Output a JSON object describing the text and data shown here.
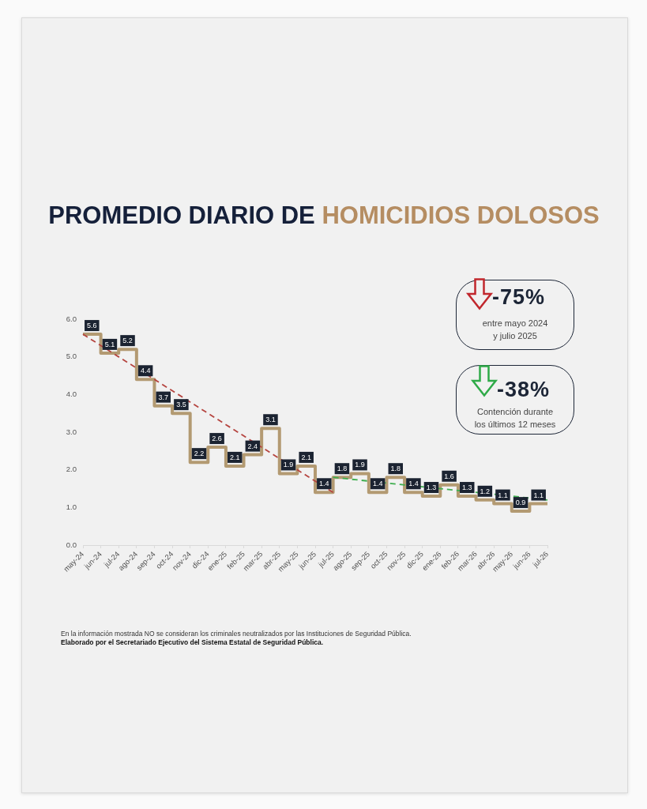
{
  "chart_data": {
    "type": "step",
    "title": "PROMEDIO DIARIO DE HOMICIDIOS DOLOSOS",
    "categories": [
      "may-24",
      "jun-24",
      "jul-24",
      "ago-24",
      "sep-24",
      "oct-24",
      "nov-24",
      "dic-24",
      "ene-25",
      "feb-25",
      "mar-25",
      "abr-25",
      "may-25",
      "jun-25",
      "jul-25",
      "ago-25",
      "sep-25",
      "oct-25",
      "nov-25",
      "dic-25",
      "ene-26",
      "feb-26",
      "mar-26",
      "abr-26",
      "may-26",
      "jun-26",
      "jul-26"
    ],
    "series": [
      {
        "color": "#b39a72",
        "values": [
          5.6,
          5.1,
          5.2,
          4.4,
          3.7,
          3.5,
          2.2,
          2.6,
          2.1,
          2.4,
          3.1,
          1.9,
          2.1,
          1.4,
          1.8,
          1.9,
          1.4,
          1.8,
          1.4,
          1.3,
          1.6,
          1.3,
          1.2,
          1.1,
          0.9,
          1.1,
          1.1
        ],
        "value_labels": [
          "5.6",
          "5.1",
          "5.2",
          "4.4",
          "3.7",
          "3.5",
          "2.2",
          "2.6",
          "2.1",
          "2.4",
          "3.1",
          "1.9",
          "2.1",
          "1.4",
          "1.8",
          "1.9",
          "1.4",
          "1.8",
          "1.4",
          "1.3",
          "1.6",
          "1.3",
          "1.2",
          "1.1",
          "0.9",
          "1.1",
          null
        ]
      },
      {
        "type": "line",
        "color": "#b5443f",
        "line_style": "dashed",
        "x": [
          "may-24",
          "jul-25"
        ],
        "values": [
          5.6,
          1.4
        ]
      },
      {
        "type": "line",
        "color": "#3fae4f",
        "line_style": "dashed",
        "x": [
          "jul-25",
          "jul-26"
        ],
        "values": [
          1.8,
          1.2
        ]
      }
    ],
    "ylim": [
      0,
      6
    ],
    "yticks": [
      {
        "value": 0,
        "label": "0.0"
      },
      {
        "value": 1,
        "label": "1.0"
      },
      {
        "value": 2,
        "label": "2.0"
      },
      {
        "value": 3,
        "label": "3.0"
      },
      {
        "value": 4,
        "label": "4.0"
      },
      {
        "value": 5,
        "label": "5.0"
      },
      {
        "value": 6,
        "label": "6.0"
      }
    ],
    "grid": false,
    "legend": false,
    "marker": "none",
    "annotations": [
      "-75%",
      "entre mayo 2024 y julio 2025",
      "-38%",
      "Contención durante los últimos 12 meses",
      "En la información mostrada NO se consideran los criminales neutralizados por las Instituciones de Seguridad Pública.",
      "Elaborado por el Secretariado Ejecutivo del Sistema Estatal de Seguridad Pública."
    ]
  }
}
